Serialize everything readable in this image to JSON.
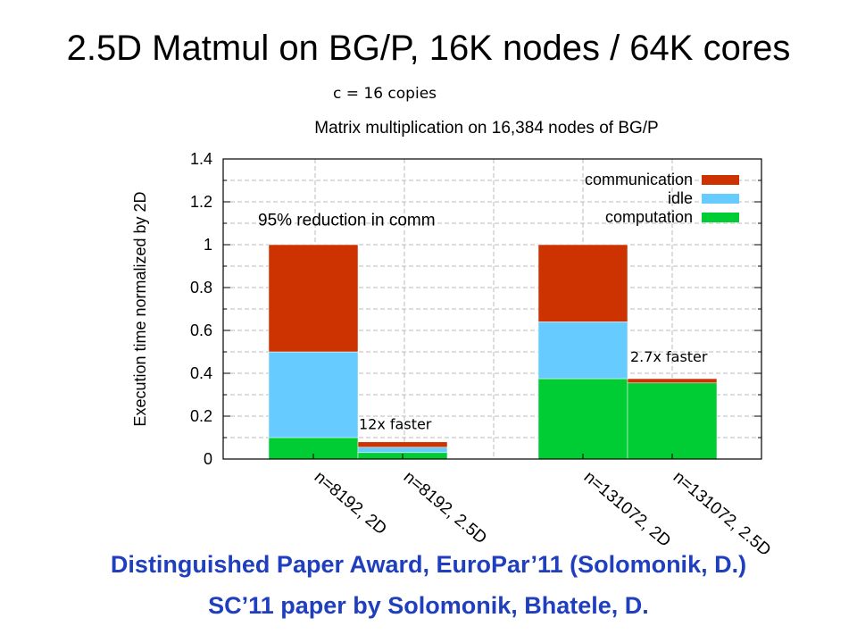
{
  "slide": {
    "title": "2.5D Matmul on BG/P, 16K nodes / 64K cores",
    "copies_note": "c = 16 copies",
    "award_line_1": "Distinguished Paper Award, EuroPar’11 (Solomonik, D.)",
    "award_line_2": "SC’11 paper by Solomonik, Bhatele, D."
  },
  "chart_data": {
    "type": "bar",
    "stacked": true,
    "title": "Matrix multiplication on 16,384 nodes of BG/P",
    "xlabel": "",
    "ylabel": "Execution time normalized by 2D",
    "ylim": [
      0,
      1.4
    ],
    "yticks": [
      0,
      0.2,
      0.4,
      0.6,
      0.8,
      1,
      1.2,
      1.4
    ],
    "ytick_labels": [
      "0",
      "0.2",
      "0.4",
      "0.6",
      "0.8",
      "1",
      "1.2",
      "1.4"
    ],
    "grid": true,
    "legend_position": "top-right",
    "categories": [
      "n=8192, 2D",
      "n=8192, 2.5D",
      "n=131072, 2D",
      "n=131072, 2.5D"
    ],
    "series": [
      {
        "name": "computation",
        "color": "#00cc33",
        "values": [
          0.1,
          0.03,
          0.375,
          0.355
        ]
      },
      {
        "name": "idle",
        "color": "#66ccff",
        "values": [
          0.4,
          0.025,
          0.265,
          0.0
        ]
      },
      {
        "name": "communication",
        "color": "#cc3300",
        "values": [
          0.5,
          0.025,
          0.36,
          0.02
        ]
      }
    ],
    "legend_order": [
      "communication",
      "idle",
      "computation"
    ],
    "annotations": [
      {
        "text": "95% reduction in comm",
        "near": "n=8192, 2D",
        "y": 1.09
      },
      {
        "text": "12x faster",
        "near": "n=8192, 2.5D",
        "y": 0.14
      },
      {
        "text": "2.7x faster",
        "near": "n=131072, 2.5D",
        "y": 0.455
      }
    ]
  }
}
